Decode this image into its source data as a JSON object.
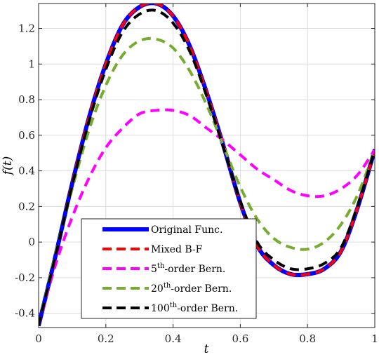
{
  "chart_data": {
    "type": "line",
    "xlabel": "t",
    "ylabel": "f(t)",
    "xlim": [
      0,
      1
    ],
    "ylim": [
      -0.48,
      1.34
    ],
    "grid": true,
    "legend_position": "bottom-left",
    "xticks": [
      0,
      0.2,
      0.4,
      0.6,
      0.8,
      1
    ],
    "xtick_labels": [
      "0",
      "0.2",
      "0.4",
      "0.6",
      "0.8",
      "1"
    ],
    "yticks": [
      -0.4,
      -0.2,
      0,
      0.2,
      0.4,
      0.6,
      0.8,
      1,
      1.2
    ],
    "ytick_labels": [
      "-0.4",
      "-0.2",
      "0",
      "0.2",
      "0.4",
      "0.6",
      "0.8",
      "1",
      "1.2"
    ],
    "series": [
      {
        "name": "Original Func.",
        "color": "#0000ff",
        "style": "solid",
        "x": [
          0,
          0.05,
          0.1,
          0.15,
          0.2,
          0.25,
          0.3,
          0.35,
          0.4,
          0.45,
          0.5,
          0.55,
          0.6,
          0.65,
          0.7,
          0.75,
          0.8,
          0.85,
          0.9,
          0.95,
          1
        ],
        "y": [
          -0.47,
          -0.08,
          0.33,
          0.7,
          1.0,
          1.22,
          1.32,
          1.34,
          1.27,
          1.1,
          0.84,
          0.54,
          0.22,
          -0.02,
          -0.13,
          -0.18,
          -0.18,
          -0.15,
          -0.05,
          0.2,
          0.52
        ]
      },
      {
        "name": "Mixed B-F",
        "color": "#ff0000",
        "style": "dashed",
        "x": [
          0,
          0.05,
          0.1,
          0.15,
          0.2,
          0.25,
          0.3,
          0.35,
          0.4,
          0.45,
          0.5,
          0.55,
          0.6,
          0.65,
          0.7,
          0.75,
          0.8,
          0.85,
          0.9,
          0.95,
          1
        ],
        "y": [
          -0.47,
          -0.08,
          0.33,
          0.7,
          1.0,
          1.22,
          1.32,
          1.34,
          1.27,
          1.1,
          0.84,
          0.54,
          0.22,
          -0.02,
          -0.13,
          -0.18,
          -0.18,
          -0.15,
          -0.05,
          0.2,
          0.52
        ]
      },
      {
        "name": "5th-order Bern.",
        "name_parts": [
          "5",
          "th",
          "-order Bern."
        ],
        "color": "#ff00ff",
        "style": "dashed",
        "x": [
          0,
          0.05,
          0.1,
          0.15,
          0.2,
          0.25,
          0.3,
          0.35,
          0.4,
          0.45,
          0.5,
          0.55,
          0.6,
          0.65,
          0.7,
          0.75,
          0.8,
          0.85,
          0.9,
          0.95,
          1
        ],
        "y": [
          -0.47,
          -0.13,
          0.14,
          0.36,
          0.53,
          0.64,
          0.72,
          0.74,
          0.74,
          0.71,
          0.64,
          0.57,
          0.49,
          0.41,
          0.35,
          0.29,
          0.26,
          0.26,
          0.3,
          0.38,
          0.52
        ]
      },
      {
        "name": "20th-order Bern.",
        "name_parts": [
          "20",
          "th",
          "-order Bern."
        ],
        "color": "#77ac30",
        "style": "dashed",
        "x": [
          0,
          0.05,
          0.1,
          0.15,
          0.2,
          0.25,
          0.3,
          0.35,
          0.4,
          0.45,
          0.5,
          0.55,
          0.6,
          0.65,
          0.7,
          0.75,
          0.8,
          0.85,
          0.9,
          0.95,
          1
        ],
        "y": [
          -0.47,
          -0.07,
          0.3,
          0.63,
          0.88,
          1.05,
          1.13,
          1.14,
          1.09,
          0.96,
          0.77,
          0.54,
          0.31,
          0.13,
          0.02,
          -0.03,
          -0.04,
          0.0,
          0.1,
          0.27,
          0.52
        ]
      },
      {
        "name": "100th-order Bern.",
        "name_parts": [
          "100",
          "th",
          "-order Bern."
        ],
        "color": "#000000",
        "style": "dashed",
        "x": [
          0,
          0.05,
          0.1,
          0.15,
          0.2,
          0.25,
          0.3,
          0.35,
          0.4,
          0.45,
          0.5,
          0.55,
          0.6,
          0.65,
          0.7,
          0.75,
          0.8,
          0.85,
          0.9,
          0.95,
          1
        ],
        "y": [
          -0.47,
          -0.08,
          0.32,
          0.68,
          0.97,
          1.18,
          1.28,
          1.3,
          1.23,
          1.07,
          0.82,
          0.53,
          0.23,
          0.0,
          -0.1,
          -0.15,
          -0.15,
          -0.12,
          -0.03,
          0.21,
          0.52
        ]
      }
    ]
  }
}
